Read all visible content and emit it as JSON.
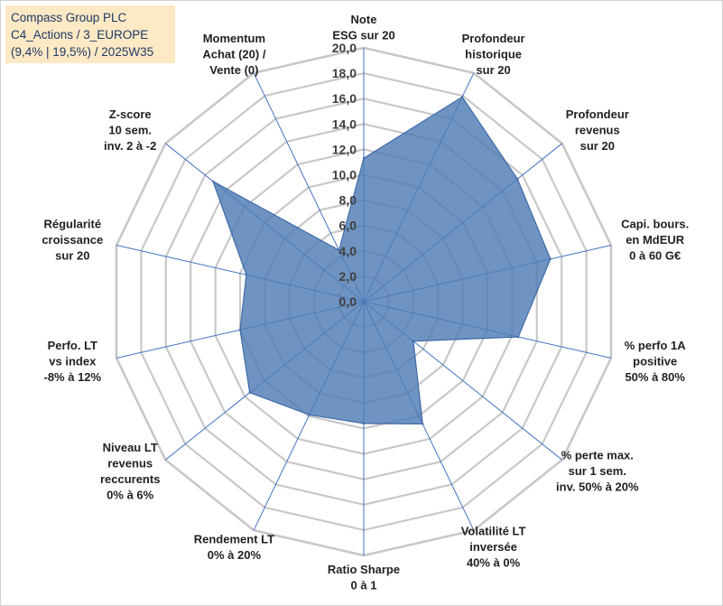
{
  "title_box": {
    "line1": "Compass Group PLC",
    "line2": "C4_Actions / 3_EUROPE",
    "line3": "(9,4% | 19,5%) / 2025W35"
  },
  "colors": {
    "fill": "#4f7cb5",
    "outline": "#3e6aa8",
    "spokes": "#4472c4",
    "grid": "#c8c8c8",
    "title_bg": "#fde9c4",
    "title_text": "#1f3864"
  },
  "chart_data": {
    "type": "radar",
    "rmin": 0,
    "rmax": 20,
    "step": 2,
    "grid": true,
    "tick_labels": [
      "0,0",
      "2,0",
      "4,0",
      "6,0",
      "8,0",
      "10,0",
      "12,0",
      "14,0",
      "16,0",
      "18,0",
      "20,0"
    ],
    "categories": [
      [
        "Note",
        "ESG sur 20"
      ],
      [
        "Profondeur",
        "historique",
        "sur 20"
      ],
      [
        "Profondeur",
        "revenus",
        "sur 20"
      ],
      [
        "Capi. bours.",
        "en MdEUR",
        "0 à 60 G€"
      ],
      [
        "% perfo 1A",
        "positive",
        "50% à 80%"
      ],
      [
        "% perte max.",
        "sur 1 sem.",
        "inv. 50% à 20%"
      ],
      [
        "Volatilité LT",
        "inversée",
        "40% à 0%"
      ],
      [
        "Ratio Sharpe",
        "0 à 1"
      ],
      [
        "Rendement LT",
        "0% à 20%"
      ],
      [
        "Niveau LT",
        "revenus",
        "reccurents",
        "0% à 6%"
      ],
      [
        "Perfo. LT",
        "vs index",
        "-8% à 12%"
      ],
      [
        "Régularité",
        "croissance",
        "sur 20"
      ],
      [
        "Z-score",
        "10 sem.",
        "inv. 2 à -2"
      ],
      [
        "Momentum",
        "Achat (20) /",
        "Vente (0)"
      ]
    ],
    "series": [
      {
        "values": [
          11.3,
          17.9,
          15.5,
          15.1,
          12.5,
          5.0,
          10.7,
          9.6,
          9.9,
          11.5,
          10.0,
          9.5,
          15.2,
          4.5
        ]
      }
    ]
  }
}
